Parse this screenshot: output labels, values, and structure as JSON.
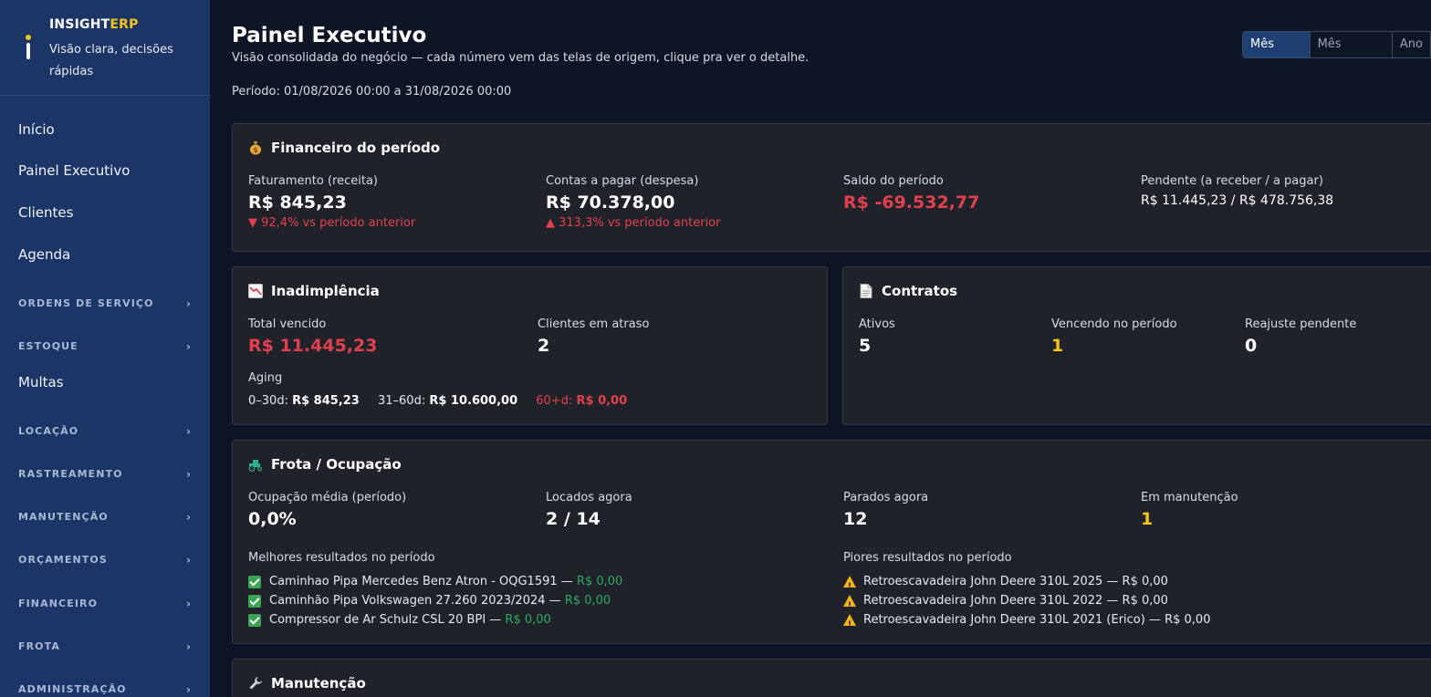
{
  "brand": {
    "name_prefix": "INSIGHT",
    "name_suffix": "ERP",
    "tagline": "Visão clara, decisões rápidas"
  },
  "sidebar": {
    "items": [
      {
        "type": "link",
        "label": "Início"
      },
      {
        "type": "link",
        "label": "Painel Executivo"
      },
      {
        "type": "link",
        "label": "Clientes"
      },
      {
        "type": "link",
        "label": "Agenda"
      },
      {
        "type": "section",
        "label": "ORDENS DE SERVIÇO"
      },
      {
        "type": "section",
        "label": "ESTOQUE"
      },
      {
        "type": "link",
        "label": "Multas"
      },
      {
        "type": "section",
        "label": "LOCAÇÃO"
      },
      {
        "type": "section",
        "label": "RASTREAMENTO"
      },
      {
        "type": "section",
        "label": "MANUTENÇÃO"
      },
      {
        "type": "section",
        "label": "ORÇAMENTOS"
      },
      {
        "type": "section",
        "label": "FINANCEIRO"
      },
      {
        "type": "section",
        "label": "FROTA"
      },
      {
        "type": "section",
        "label": "ADMINISTRAÇÃO"
      }
    ],
    "chevron": "›"
  },
  "header": {
    "title": "Painel Executivo",
    "subtitle": "Visão consolidada do negócio — cada número vem das telas de origem, clique pra ver o detalhe.",
    "period": "Período: 01/08/2026 00:00 a 31/08/2026 00:00",
    "period_options": [
      "Mês atual",
      "Mês anterior",
      "Ano"
    ],
    "period_selected": "Mês atual"
  },
  "financeiro": {
    "title": "Financeiro do período",
    "icon": "money-bag-icon",
    "faturamento_label": "Faturamento (receita)",
    "faturamento_value": "R$ 845,23",
    "faturamento_delta": "▼ 92,4% vs período anterior",
    "contas_label": "Contas a pagar (despesa)",
    "contas_value": "R$ 70.378,00",
    "contas_delta": "▲ 313,3% vs período anterior",
    "saldo_label": "Saldo do período",
    "saldo_value": "R$ -69.532,77",
    "pendente_label": "Pendente (a receber / a pagar)",
    "pendente_value": "R$ 11.445,23 / R$ 478.756,38"
  },
  "inadimplencia": {
    "title": "Inadimplência",
    "icon": "chart-down-icon",
    "total_label": "Total vencido",
    "total_value": "R$ 11.445,23",
    "clientes_label": "Clientes em atraso",
    "clientes_value": "2",
    "aging_label": "Aging",
    "aging": [
      {
        "range": "0–30d:",
        "value": "R$ 845,23"
      },
      {
        "range": "31–60d:",
        "value": "R$ 10.600,00"
      },
      {
        "range": "60+d:",
        "value": "R$ 0,00"
      }
    ]
  },
  "contratos": {
    "title": "Contratos",
    "icon": "document-icon",
    "ativos_label": "Ativos",
    "ativos_value": "5",
    "vencendo_label": "Vencendo no período",
    "vencendo_value": "1",
    "reajuste_label": "Reajuste pendente",
    "reajuste_value": "0"
  },
  "frota": {
    "title": "Frota / Ocupação",
    "icon": "tractor-icon",
    "ocupacao_label": "Ocupação média (período)",
    "ocupacao_value": "0,0%",
    "locados_label": "Locados agora",
    "locados_value": "2 / 14",
    "parados_label": "Parados agora",
    "parados_value": "12",
    "manutencao_label": "Em manutenção",
    "manutencao_value": "1",
    "melhores_title": "Melhores resultados no período",
    "melhores": [
      {
        "name": "Caminhao Pipa Mercedes Benz Atron - OQG1591 —",
        "value": "R$ 0,00"
      },
      {
        "name": "Caminhão Pipa Volkswagen 27.260 2023/2024 —",
        "value": "R$ 0,00"
      },
      {
        "name": "Compressor de Ar Schulz CSL 20 BPI —",
        "value": "R$ 0,00"
      }
    ],
    "piores_title": "Piores resultados no período",
    "piores": [
      {
        "text": "Retroescavadeira John Deere 310L 2025 — R$ 0,00"
      },
      {
        "text": "Retroescavadeira John Deere 310L 2022 — R$ 0,00"
      },
      {
        "text": "Retroescavadeira John Deere 310L 2021 (Erico) — R$ 0,00"
      }
    ]
  },
  "manutencao": {
    "title": "Manutenção",
    "icon": "wrench-icon"
  },
  "colors": {
    "sidebar_bg": "#1a3566",
    "page_bg": "#0e1625",
    "card_bg": "#1f2329",
    "negative": "#e2404f",
    "warning": "#f5c518",
    "positive": "#2fa866"
  }
}
